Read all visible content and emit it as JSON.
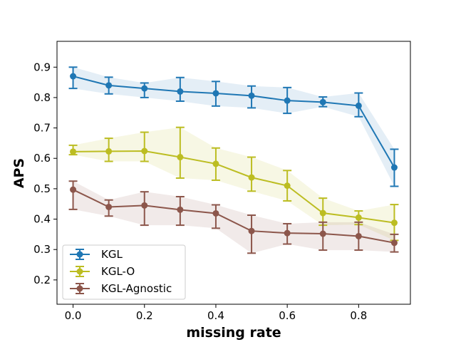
{
  "chart_data": {
    "type": "line",
    "xlabel": "missing rate",
    "ylabel": "APS",
    "xlim": [
      -0.045,
      0.945
    ],
    "ylim": [
      0.12,
      0.985
    ],
    "x_ticks": [
      0.0,
      0.2,
      0.4,
      0.6,
      0.8
    ],
    "x_tick_labels": [
      "0.0",
      "0.2",
      "0.4",
      "0.6",
      "0.8"
    ],
    "y_ticks": [
      0.2,
      0.3,
      0.4,
      0.5,
      0.6,
      0.7,
      0.8,
      0.9
    ],
    "y_tick_labels": [
      "0.2",
      "0.3",
      "0.4",
      "0.5",
      "0.6",
      "0.7",
      "0.8",
      "0.9"
    ],
    "grid": false,
    "legend_position": "lower-left",
    "x": [
      0.0,
      0.1,
      0.2,
      0.3,
      0.4,
      0.5,
      0.6,
      0.7,
      0.8,
      0.9
    ],
    "series": [
      {
        "name": "KGL",
        "color": "#1f77b4",
        "values": [
          0.87,
          0.84,
          0.83,
          0.82,
          0.814,
          0.806,
          0.79,
          0.785,
          0.773,
          0.57
        ],
        "lower": [
          0.83,
          0.812,
          0.8,
          0.788,
          0.772,
          0.766,
          0.748,
          0.77,
          0.737,
          0.508
        ],
        "upper": [
          0.9,
          0.867,
          0.848,
          0.866,
          0.853,
          0.838,
          0.833,
          0.802,
          0.815,
          0.63
        ]
      },
      {
        "name": "KGL-O",
        "color": "#bcbd22",
        "values": [
          0.622,
          0.623,
          0.624,
          0.604,
          0.582,
          0.537,
          0.51,
          0.42,
          0.405,
          0.388
        ],
        "lower": [
          0.612,
          0.59,
          0.59,
          0.535,
          0.528,
          0.492,
          0.46,
          0.38,
          0.382,
          0.33
        ],
        "upper": [
          0.643,
          0.666,
          0.686,
          0.702,
          0.634,
          0.604,
          0.56,
          0.469,
          0.427,
          0.448
        ]
      },
      {
        "name": "KGL-Agnostic",
        "color": "#8c564b",
        "values": [
          0.497,
          0.44,
          0.445,
          0.431,
          0.419,
          0.361,
          0.354,
          0.352,
          0.344,
          0.322
        ],
        "lower": [
          0.432,
          0.41,
          0.38,
          0.38,
          0.37,
          0.288,
          0.318,
          0.298,
          0.298,
          0.292
        ],
        "upper": [
          0.525,
          0.463,
          0.49,
          0.474,
          0.447,
          0.413,
          0.385,
          0.39,
          0.39,
          0.35
        ]
      }
    ]
  }
}
